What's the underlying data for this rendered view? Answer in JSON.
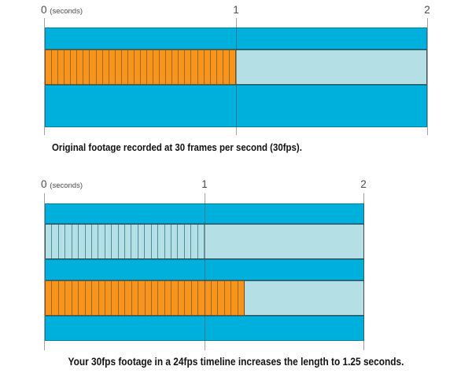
{
  "colors": {
    "cyan": "#00b0dc",
    "light-cyan": "#b4dfe5",
    "orange": "#f6941e",
    "orange-divider": "#a5671c",
    "orange-border": "#7c4e12",
    "light-divider": "#4f8fa0",
    "light-border": "#3f545b",
    "label-text": "#4b4b4b",
    "caption-text": "#111111"
  },
  "diagram1": {
    "axis": {
      "origin": "0",
      "unit": "(seconds)",
      "tick_1": "1",
      "tick_2": "2"
    },
    "footage": {
      "frame_count": 30
    },
    "caption": "Original footage recorded at 30 frames per second (30fps)."
  },
  "diagram2": {
    "axis": {
      "origin": "0",
      "unit": "(seconds)",
      "tick_1": "1",
      "tick_2": "2"
    },
    "timeline": {
      "frame_count": 24
    },
    "footage": {
      "frame_count": 30
    },
    "caption": "Your 30fps footage in a 24fps timeline increases the length to 1.25 seconds."
  }
}
